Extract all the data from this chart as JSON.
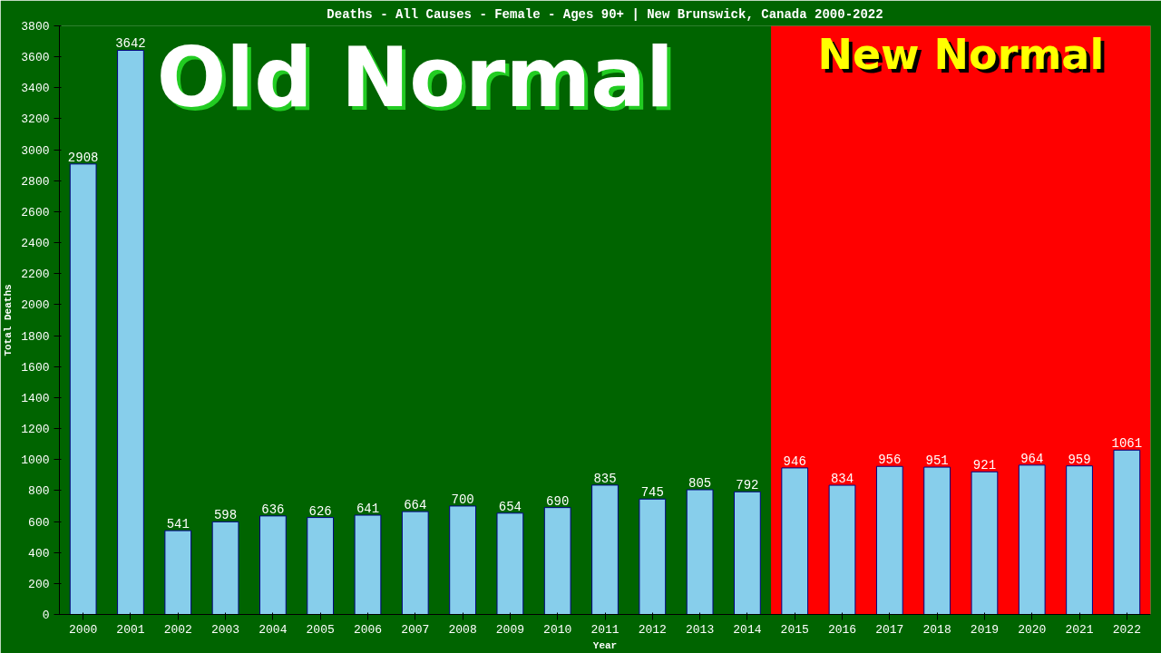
{
  "chart_data": {
    "type": "bar",
    "title": "Deaths - All Causes - Female - Ages 90+ | New Brunswick, Canada 2000-2022",
    "xlabel": "Year",
    "ylabel": "Total Deaths",
    "categories": [
      "2000",
      "2001",
      "2002",
      "2003",
      "2004",
      "2005",
      "2006",
      "2007",
      "2008",
      "2009",
      "2010",
      "2011",
      "2012",
      "2013",
      "2014",
      "2015",
      "2016",
      "2017",
      "2018",
      "2019",
      "2020",
      "2021",
      "2022"
    ],
    "values": [
      2908,
      3642,
      541,
      598,
      636,
      626,
      641,
      664,
      700,
      654,
      690,
      835,
      745,
      805,
      792,
      946,
      834,
      956,
      951,
      921,
      964,
      959,
      1061
    ],
    "color": "#87ceeb",
    "data_labels": true,
    "grid": false,
    "ylim": [
      0,
      3800
    ],
    "yticks": [
      0,
      200,
      400,
      600,
      800,
      1000,
      1200,
      1400,
      1600,
      1800,
      2000,
      2200,
      2400,
      2600,
      2800,
      3000,
      3200,
      3400,
      3600,
      3800
    ],
    "bands": [
      {
        "axis": "x",
        "from": "2000",
        "to": "2014",
        "label": "Old Normal",
        "color": "#006400"
      },
      {
        "axis": "x",
        "from": "2015",
        "to": "2022",
        "label": "New Normal",
        "color": "#ff0000"
      }
    ]
  }
}
